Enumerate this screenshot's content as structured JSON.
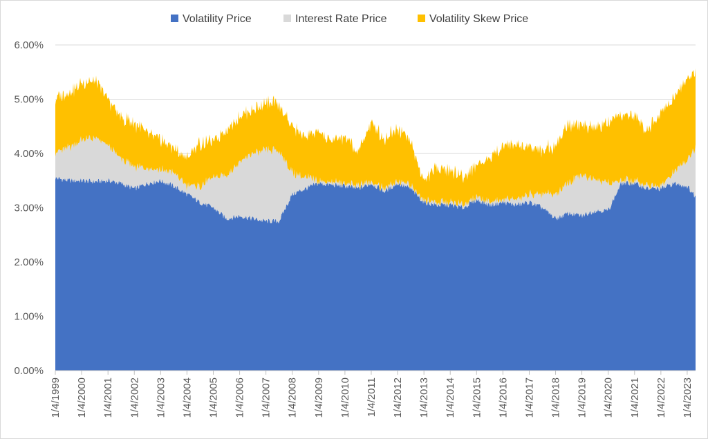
{
  "chart_data": {
    "type": "area",
    "stacked": true,
    "title": "",
    "xlabel": "",
    "ylabel": "",
    "ylim": [
      0,
      6
    ],
    "y_tick_values": [
      0,
      1,
      2,
      3,
      4,
      5,
      6
    ],
    "y_tick_labels": [
      "0.00%",
      "1.00%",
      "2.00%",
      "3.00%",
      "4.00%",
      "5.00%",
      "6.00%"
    ],
    "x_tick_labels": [
      "1/4/1999",
      "1/4/2000",
      "1/4/2001",
      "1/4/2002",
      "1/4/2003",
      "1/4/2004",
      "1/4/2005",
      "1/4/2006",
      "1/4/2007",
      "1/4/2008",
      "1/4/2009",
      "1/4/2010",
      "1/4/2011",
      "1/4/2012",
      "1/4/2013",
      "1/4/2014",
      "1/4/2015",
      "1/4/2016",
      "1/4/2017",
      "1/4/2018",
      "1/4/2019",
      "1/4/2020",
      "1/4/2021",
      "1/4/2022",
      "1/4/2023"
    ],
    "x_range": [
      "1/4/1999",
      "4/30/2023"
    ],
    "grid": "horizontal",
    "legend_position": "top",
    "x": [
      "1/4/1999",
      "7/4/1999",
      "1/4/2000",
      "7/4/2000",
      "1/4/2001",
      "7/4/2001",
      "1/4/2002",
      "7/4/2002",
      "1/4/2003",
      "7/4/2003",
      "1/4/2004",
      "7/4/2004",
      "1/4/2005",
      "7/4/2005",
      "1/4/2006",
      "7/4/2006",
      "1/4/2007",
      "7/4/2007",
      "1/4/2008",
      "7/4/2008",
      "1/4/2009",
      "7/4/2009",
      "1/4/2010",
      "7/4/2010",
      "1/4/2011",
      "7/4/2011",
      "1/4/2012",
      "7/4/2012",
      "1/4/2013",
      "7/4/2013",
      "1/4/2014",
      "7/4/2014",
      "1/4/2015",
      "7/4/2015",
      "1/4/2016",
      "7/4/2016",
      "1/4/2017",
      "7/4/2017",
      "1/4/2018",
      "7/4/2018",
      "1/4/2019",
      "7/4/2019",
      "1/4/2020",
      "7/4/2020",
      "1/4/2021",
      "7/4/2021",
      "1/4/2022",
      "7/4/2022",
      "1/4/2023",
      "4/30/2023"
    ],
    "series": [
      {
        "name": "Volatility Price",
        "color": "#4472C4",
        "values": [
          3.55,
          3.5,
          3.5,
          3.48,
          3.5,
          3.45,
          3.35,
          3.45,
          3.5,
          3.4,
          3.25,
          3.1,
          3.0,
          2.8,
          2.85,
          2.8,
          2.75,
          2.75,
          3.25,
          3.35,
          3.45,
          3.42,
          3.4,
          3.35,
          3.45,
          3.3,
          3.45,
          3.35,
          3.1,
          3.05,
          3.05,
          3.0,
          3.15,
          3.05,
          3.1,
          3.05,
          3.1,
          3.0,
          2.8,
          2.9,
          2.85,
          2.95,
          2.95,
          3.45,
          3.45,
          3.35,
          3.35,
          3.45,
          3.4,
          3.2
        ]
      },
      {
        "name": "Interest Rate Price",
        "color": "#D9D9D9",
        "values": [
          0.47,
          0.6,
          0.75,
          0.8,
          0.65,
          0.45,
          0.4,
          0.3,
          0.2,
          0.25,
          0.15,
          0.3,
          0.55,
          0.8,
          1.0,
          1.2,
          1.3,
          1.3,
          0.4,
          0.2,
          0.05,
          0.05,
          0.05,
          0.05,
          0.05,
          0.05,
          0.05,
          0.05,
          0.05,
          0.05,
          0.05,
          0.05,
          0.05,
          0.05,
          0.05,
          0.1,
          0.15,
          0.25,
          0.45,
          0.55,
          0.75,
          0.6,
          0.5,
          0.05,
          0.05,
          0.05,
          0.05,
          0.2,
          0.5,
          0.9
        ]
      },
      {
        "name": "Volatility Skew Price",
        "color": "#FFC000",
        "values": [
          1.0,
          1.0,
          1.05,
          1.05,
          0.85,
          0.75,
          0.8,
          0.65,
          0.55,
          0.45,
          0.5,
          0.8,
          0.65,
          0.85,
          0.85,
          0.8,
          0.85,
          0.85,
          0.85,
          0.75,
          0.9,
          0.75,
          0.85,
          0.6,
          1.1,
          0.9,
          1.0,
          0.8,
          0.35,
          0.65,
          0.6,
          0.5,
          0.6,
          0.8,
          1.0,
          1.0,
          0.9,
          0.8,
          0.9,
          1.1,
          0.9,
          0.95,
          1.1,
          1.2,
          1.2,
          1.0,
          1.4,
          1.35,
          1.5,
          1.4
        ]
      }
    ]
  }
}
